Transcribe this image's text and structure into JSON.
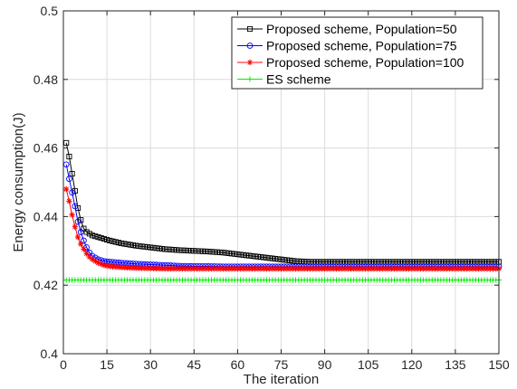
{
  "chart_data": {
    "type": "line",
    "title": "",
    "xlabel": "The iteration",
    "ylabel": "Energy consumption(J)",
    "xlim": [
      0,
      150
    ],
    "ylim": [
      0.4,
      0.5
    ],
    "xticks": [
      0,
      15,
      30,
      45,
      60,
      75,
      90,
      105,
      120,
      135,
      150
    ],
    "yticks": [
      0.4,
      0.42,
      0.44,
      0.46,
      0.48,
      0.5
    ],
    "xtick_labels": [
      "0",
      "15",
      "30",
      "45",
      "60",
      "75",
      "90",
      "105",
      "120",
      "135",
      "150"
    ],
    "ytick_labels": [
      "0.4",
      "0.42",
      "0.44",
      "0.46",
      "0.48",
      "0.5"
    ],
    "grid": true,
    "legend_position": "top-right",
    "series": [
      {
        "name": "Proposed scheme, Population=50",
        "color": "#000000",
        "marker": "square",
        "x": [
          1,
          2,
          3,
          4,
          5,
          6,
          7,
          8,
          9,
          10,
          12,
          14,
          16,
          20,
          25,
          30,
          35,
          40,
          45,
          50,
          55,
          60,
          65,
          70,
          75,
          80,
          85,
          90,
          100,
          110,
          120,
          130,
          140,
          150
        ],
        "values": [
          0.4615,
          0.4575,
          0.4525,
          0.4475,
          0.4425,
          0.439,
          0.4365,
          0.4355,
          0.435,
          0.4345,
          0.434,
          0.4335,
          0.433,
          0.4322,
          0.4315,
          0.431,
          0.4305,
          0.4302,
          0.43,
          0.4298,
          0.4295,
          0.429,
          0.4285,
          0.428,
          0.4275,
          0.427,
          0.4268,
          0.4268,
          0.4268,
          0.4268,
          0.4268,
          0.4268,
          0.4268,
          0.4268
        ]
      },
      {
        "name": "Proposed scheme, Population=75",
        "color": "#0000ff",
        "marker": "circle",
        "x": [
          1,
          2,
          3,
          4,
          5,
          6,
          7,
          8,
          9,
          10,
          12,
          14,
          16,
          20,
          25,
          30,
          35,
          40,
          45,
          50,
          55,
          60,
          65,
          70,
          75,
          80,
          90,
          100,
          110,
          120,
          130,
          140,
          150
        ],
        "values": [
          0.4552,
          0.451,
          0.447,
          0.443,
          0.4385,
          0.4355,
          0.433,
          0.431,
          0.4295,
          0.4285,
          0.4275,
          0.427,
          0.4268,
          0.4265,
          0.4262,
          0.426,
          0.4258,
          0.4256,
          0.4255,
          0.4255,
          0.4254,
          0.4254,
          0.4254,
          0.4254,
          0.4254,
          0.4254,
          0.4254,
          0.4254,
          0.4254,
          0.4254,
          0.4254,
          0.4254,
          0.4254
        ]
      },
      {
        "name": "Proposed scheme, Population=100",
        "color": "#ff0000",
        "marker": "asterisk",
        "x": [
          1,
          2,
          3,
          4,
          5,
          6,
          7,
          8,
          9,
          10,
          12,
          14,
          16,
          20,
          25,
          30,
          35,
          40,
          45,
          50,
          60,
          70,
          80,
          90,
          100,
          110,
          120,
          130,
          140,
          150
        ],
        "values": [
          0.448,
          0.4445,
          0.4405,
          0.437,
          0.434,
          0.432,
          0.4305,
          0.4292,
          0.4282,
          0.4275,
          0.4265,
          0.4258,
          0.4255,
          0.4252,
          0.425,
          0.4249,
          0.4248,
          0.4248,
          0.4248,
          0.4248,
          0.4248,
          0.4248,
          0.4248,
          0.4248,
          0.4248,
          0.4248,
          0.4248,
          0.4248,
          0.4248,
          0.4248
        ]
      },
      {
        "name": "ES scheme",
        "color": "#00ee00",
        "marker": "plus",
        "x": [
          1,
          150
        ],
        "values": [
          0.4215,
          0.4215
        ]
      }
    ]
  }
}
